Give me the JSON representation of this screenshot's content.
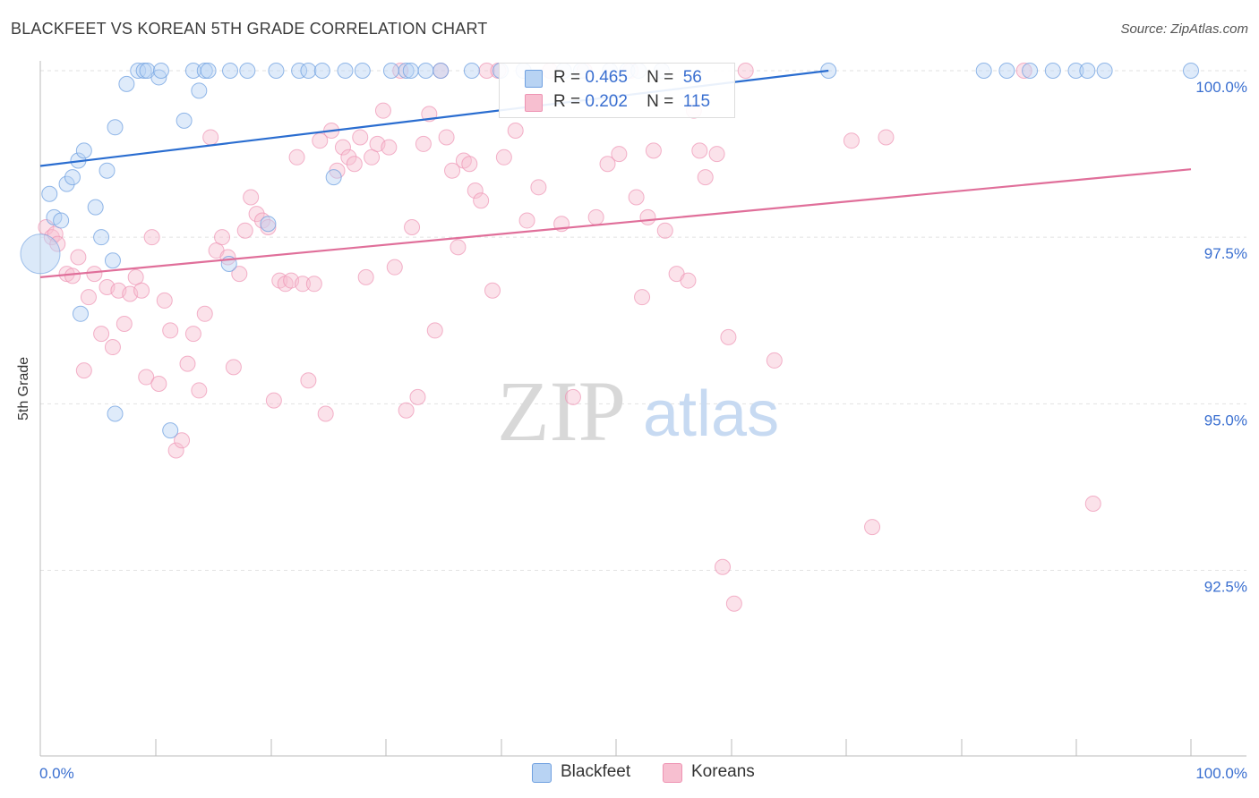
{
  "header": {
    "title": "BLACKFEET VS KOREAN 5TH GRADE CORRELATION CHART",
    "source": "Source: ZipAtlas.com"
  },
  "watermark": {
    "zip": "ZIP",
    "atlas": "atlas"
  },
  "legend": {
    "rows": [
      {
        "r_label": "R =",
        "r_value": "0.465",
        "n_label": "N =",
        "n_value": "56",
        "color": "#b8d3f3"
      },
      {
        "r_label": "R =",
        "r_value": "0.202",
        "n_label": "N =",
        "n_value": "115",
        "color": "#f7bfd0"
      }
    ]
  },
  "bottom_legend": [
    {
      "label": "Blackfeet",
      "color": "#b8d3f3"
    },
    {
      "label": "Koreans",
      "color": "#f7bfd0"
    }
  ],
  "chart_data": {
    "type": "scatter",
    "title": "BLACKFEET VS KOREAN 5TH GRADE CORRELATION CHART",
    "ylabel": "5th Grade",
    "xlabel": "",
    "xlim": [
      0,
      100
    ],
    "ylim": [
      89.7,
      100.2
    ],
    "x_tick_labels": [
      "0.0%",
      "100.0%"
    ],
    "y_ticks": [
      92.5,
      95.0,
      97.5,
      100.0
    ],
    "y_tick_labels": [
      "92.5%",
      "95.0%",
      "97.5%",
      "100.0%"
    ],
    "grid": true,
    "colors": {
      "blackfeet": "#6fa0e0",
      "blackfeet_fill": "#b8d3f3",
      "blackfeet_line": "#2a6dd0",
      "koreans": "#ee93b3",
      "koreans_fill": "#f7bfd0",
      "koreans_line": "#e06f9a",
      "tick_text": "#3a6fd0"
    },
    "series": [
      {
        "name": "Blackfeet",
        "trend": {
          "x": [
            0,
            68.5
          ],
          "y": [
            98.57,
            100.0
          ]
        },
        "points": [
          [
            0.8,
            98.15
          ],
          [
            1.2,
            97.8
          ],
          [
            1.8,
            97.75
          ],
          [
            2.3,
            98.3
          ],
          [
            2.8,
            98.4
          ],
          [
            3.3,
            98.65
          ],
          [
            3.8,
            98.8
          ],
          [
            4.8,
            97.95
          ],
          [
            5.3,
            97.5
          ],
          [
            5.8,
            98.5
          ],
          [
            6.5,
            99.15
          ],
          [
            7.5,
            99.8
          ],
          [
            8.5,
            100
          ],
          [
            9.0,
            100
          ],
          [
            9.3,
            100
          ],
          [
            10.3,
            99.9
          ],
          [
            10.5,
            100
          ],
          [
            12.5,
            99.25
          ],
          [
            13.3,
            100
          ],
          [
            13.8,
            99.7
          ],
          [
            14.3,
            100
          ],
          [
            14.6,
            100
          ],
          [
            16.5,
            100
          ],
          [
            18,
            100
          ],
          [
            20.5,
            100
          ],
          [
            22.5,
            100
          ],
          [
            23.3,
            100
          ],
          [
            24.5,
            100
          ],
          [
            25.5,
            98.4
          ],
          [
            26.5,
            100
          ],
          [
            28,
            100
          ],
          [
            30.5,
            100
          ],
          [
            31.8,
            100
          ],
          [
            32.2,
            100
          ],
          [
            33.5,
            100
          ],
          [
            34.8,
            100
          ],
          [
            37.5,
            100
          ],
          [
            40,
            100
          ],
          [
            42,
            100
          ],
          [
            45.5,
            100
          ],
          [
            47,
            100
          ],
          [
            49.5,
            100
          ],
          [
            51,
            100
          ],
          [
            52,
            100
          ],
          [
            54,
            100
          ],
          [
            68.5,
            100
          ],
          [
            82,
            100
          ],
          [
            84,
            100
          ],
          [
            86,
            100
          ],
          [
            88,
            100
          ],
          [
            90,
            100
          ],
          [
            91,
            100
          ],
          [
            92.5,
            100
          ],
          [
            100,
            100
          ],
          [
            3.5,
            96.35
          ],
          [
            6.3,
            97.15
          ],
          [
            11.3,
            94.6
          ],
          [
            16.4,
            97.1
          ],
          [
            19.8,
            97.7
          ],
          [
            6.5,
            94.85
          ]
        ],
        "big_point": [
          0.0,
          97.25
        ]
      },
      {
        "name": "Koreans",
        "trend": {
          "x": [
            0,
            100
          ],
          "y": [
            96.9,
            98.52
          ]
        },
        "points": [
          [
            0.5,
            97.65
          ],
          [
            1,
            97.5
          ],
          [
            1.3,
            97.55
          ],
          [
            1.5,
            97.4
          ],
          [
            2.3,
            96.95
          ],
          [
            2.8,
            96.92
          ],
          [
            3.3,
            97.2
          ],
          [
            3.8,
            95.5
          ],
          [
            4.2,
            96.6
          ],
          [
            4.7,
            96.95
          ],
          [
            5.3,
            96.05
          ],
          [
            5.8,
            96.75
          ],
          [
            6.3,
            95.85
          ],
          [
            6.8,
            96.7
          ],
          [
            7.3,
            96.2
          ],
          [
            7.8,
            96.65
          ],
          [
            8.3,
            96.9
          ],
          [
            8.8,
            96.7
          ],
          [
            9.2,
            95.4
          ],
          [
            9.7,
            97.5
          ],
          [
            10.3,
            95.3
          ],
          [
            10.8,
            96.55
          ],
          [
            11.3,
            96.1
          ],
          [
            11.8,
            94.3
          ],
          [
            12.3,
            94.45
          ],
          [
            12.8,
            95.6
          ],
          [
            13.3,
            96.05
          ],
          [
            13.8,
            95.2
          ],
          [
            14.3,
            96.35
          ],
          [
            14.8,
            99.0
          ],
          [
            15.3,
            97.3
          ],
          [
            15.8,
            97.5
          ],
          [
            16.3,
            97.2
          ],
          [
            16.8,
            95.55
          ],
          [
            17.3,
            96.95
          ],
          [
            17.8,
            97.6
          ],
          [
            18.3,
            98.1
          ],
          [
            18.8,
            97.85
          ],
          [
            19.3,
            97.75
          ],
          [
            19.8,
            97.65
          ],
          [
            20.3,
            95.05
          ],
          [
            20.8,
            96.85
          ],
          [
            21.3,
            96.8
          ],
          [
            21.8,
            96.85
          ],
          [
            22.3,
            98.7
          ],
          [
            22.8,
            96.8
          ],
          [
            23.3,
            95.35
          ],
          [
            23.8,
            96.8
          ],
          [
            24.3,
            98.95
          ],
          [
            24.8,
            94.85
          ],
          [
            25.3,
            99.1
          ],
          [
            25.8,
            98.5
          ],
          [
            26.3,
            98.85
          ],
          [
            26.8,
            98.7
          ],
          [
            27.3,
            98.6
          ],
          [
            27.8,
            99.0
          ],
          [
            28.3,
            96.9
          ],
          [
            28.8,
            98.7
          ],
          [
            29.3,
            98.9
          ],
          [
            29.8,
            99.4
          ],
          [
            30.3,
            98.85
          ],
          [
            30.8,
            97.05
          ],
          [
            31.3,
            100
          ],
          [
            31.8,
            94.9
          ],
          [
            32.3,
            97.65
          ],
          [
            32.8,
            95.1
          ],
          [
            33.3,
            98.9
          ],
          [
            33.8,
            99.35
          ],
          [
            34.3,
            96.1
          ],
          [
            34.8,
            100
          ],
          [
            35.3,
            99.0
          ],
          [
            35.8,
            98.5
          ],
          [
            36.3,
            97.35
          ],
          [
            36.8,
            98.65
          ],
          [
            37.3,
            98.6
          ],
          [
            37.8,
            98.2
          ],
          [
            38.3,
            98.05
          ],
          [
            38.8,
            100
          ],
          [
            39.3,
            96.7
          ],
          [
            39.8,
            100
          ],
          [
            40.3,
            98.7
          ],
          [
            41.3,
            99.1
          ],
          [
            42.3,
            97.75
          ],
          [
            43.3,
            98.25
          ],
          [
            44.3,
            100
          ],
          [
            45.3,
            97.7
          ],
          [
            46.3,
            95.1
          ],
          [
            47.3,
            100
          ],
          [
            48.3,
            97.8
          ],
          [
            49.3,
            98.6
          ],
          [
            50.3,
            98.75
          ],
          [
            51.3,
            100
          ],
          [
            51.8,
            98.1
          ],
          [
            52.3,
            96.6
          ],
          [
            52.8,
            97.8
          ],
          [
            53.3,
            98.8
          ],
          [
            54.3,
            97.6
          ],
          [
            55.3,
            96.95
          ],
          [
            56.3,
            96.85
          ],
          [
            56.8,
            99.4
          ],
          [
            57.3,
            98.8
          ],
          [
            57.8,
            98.4
          ],
          [
            58.8,
            98.75
          ],
          [
            59.3,
            92.55
          ],
          [
            59.8,
            96.0
          ],
          [
            60.3,
            92.0
          ],
          [
            61.3,
            100
          ],
          [
            63.8,
            95.65
          ],
          [
            70.5,
            98.95
          ],
          [
            72.3,
            93.15
          ],
          [
            73.5,
            99.0
          ],
          [
            85.5,
            100
          ],
          [
            91.5,
            93.5
          ]
        ]
      }
    ]
  }
}
